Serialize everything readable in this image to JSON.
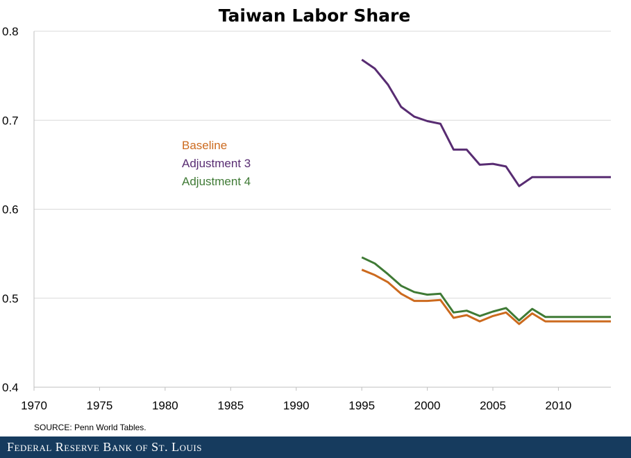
{
  "chart_data": {
    "type": "line",
    "title": "Taiwan Labor Share",
    "xlim": [
      1970,
      2014
    ],
    "ylim": [
      0.4,
      0.8
    ],
    "x_ticks": [
      "1970",
      "1975",
      "1980",
      "1985",
      "1990",
      "1995",
      "2000",
      "2005",
      "2010"
    ],
    "y_ticks": [
      "0.4",
      "0.5",
      "0.6",
      "0.7",
      "0.8"
    ],
    "grid": "horizontal",
    "legend_placement": "inside-left",
    "x": [
      1995,
      1996,
      1997,
      1998,
      1999,
      2000,
      2001,
      2002,
      2003,
      2004,
      2005,
      2006,
      2007,
      2008,
      2009,
      2010,
      2011,
      2012,
      2013,
      2014
    ],
    "series": [
      {
        "name": "Baseline",
        "color": "#cc6a1e",
        "values": [
          0.532,
          0.526,
          0.518,
          0.505,
          0.497,
          0.497,
          0.498,
          0.478,
          0.481,
          0.474,
          0.48,
          0.484,
          0.471,
          0.483,
          0.474,
          0.474,
          0.474,
          0.474,
          0.474,
          0.474
        ]
      },
      {
        "name": "Adjustment 3",
        "color": "#582c72",
        "values": [
          0.768,
          0.758,
          0.74,
          0.715,
          0.704,
          0.699,
          0.696,
          0.667,
          0.667,
          0.65,
          0.651,
          0.648,
          0.626,
          0.636,
          0.636,
          0.636,
          0.636,
          0.636,
          0.636,
          0.636
        ]
      },
      {
        "name": "Adjustment 4",
        "color": "#3f7a35",
        "values": [
          0.546,
          0.539,
          0.527,
          0.514,
          0.507,
          0.504,
          0.505,
          0.484,
          0.486,
          0.48,
          0.485,
          0.489,
          0.475,
          0.488,
          0.479,
          0.479,
          0.479,
          0.479,
          0.479,
          0.479
        ]
      }
    ]
  },
  "source_note": "SOURCE: Penn World Tables.",
  "footer": {
    "text": "Federal Reserve Bank of St. Louis",
    "background": "#163b5e"
  }
}
